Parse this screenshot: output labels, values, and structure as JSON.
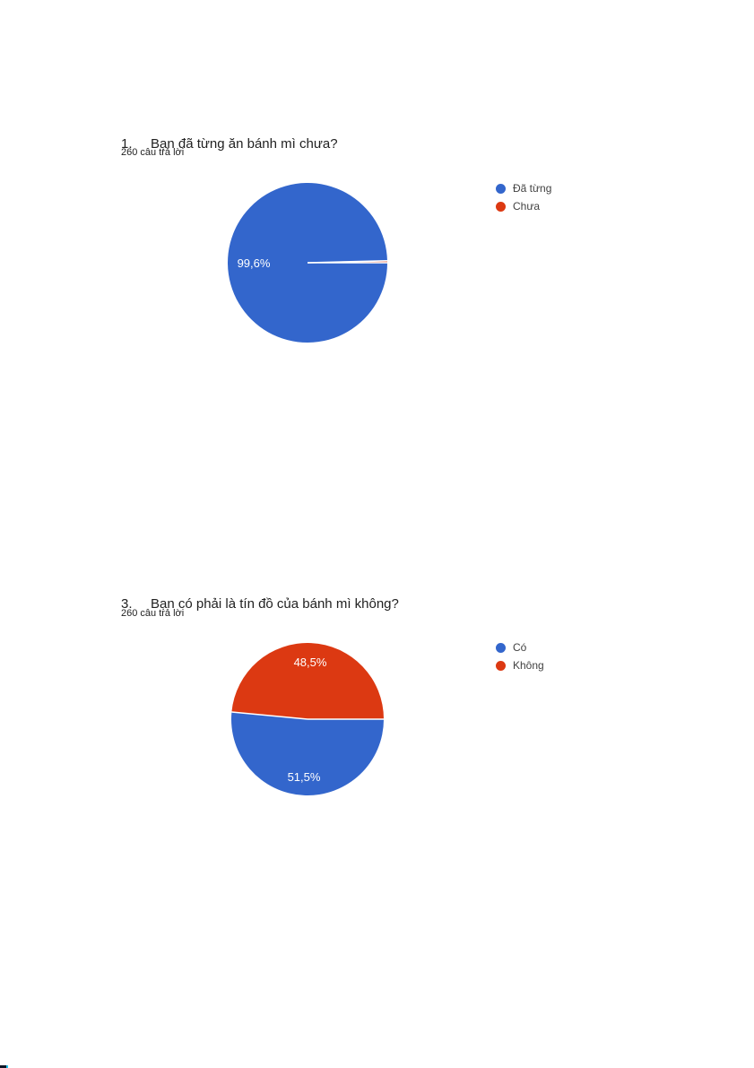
{
  "page": {
    "background": "#ffffff",
    "title_color": "#212121",
    "legend_text_color": "#424242"
  },
  "palette": {
    "blue": "#3366cc",
    "red": "#dc3912",
    "slice_label_color": "#ffffff",
    "separator_color": "#ffffff"
  },
  "chart_data": [
    {
      "type": "pie",
      "number": "1.",
      "question": "Bạn đã từng ăn bánh mì chưa?",
      "title": "1. Bạn đã từng ăn bánh mì chưa?",
      "subtitle": "260 câu trả lời",
      "labels": [
        "Đã từng",
        "Chưa"
      ],
      "values": [
        99.6,
        0.4
      ],
      "value_display": [
        "99,6%",
        ""
      ],
      "colors": [
        "#3366cc",
        "#dc3912"
      ],
      "legend_position": "right",
      "start_angle_deg": 0,
      "direction": "clockwise"
    },
    {
      "type": "pie",
      "number": "3.",
      "question": "Bạn có phải là tín đồ của bánh mì không?",
      "title": "3. Bạn có phải là tín đồ của bánh mì không?",
      "subtitle": "260 câu trả lời",
      "labels": [
        "Có",
        "Không"
      ],
      "values": [
        51.5,
        48.5
      ],
      "value_display": [
        "51,5%",
        "48,5%"
      ],
      "colors": [
        "#3366cc",
        "#dc3912"
      ],
      "legend_position": "right",
      "start_angle_deg": 0,
      "direction": "clockwise"
    }
  ]
}
